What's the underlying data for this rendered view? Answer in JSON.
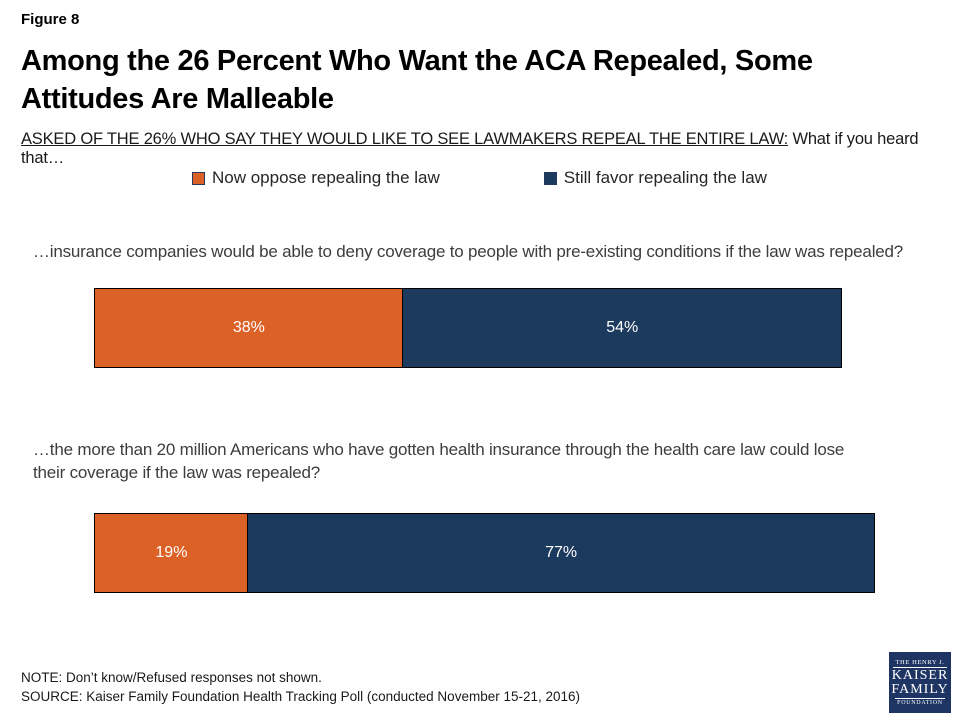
{
  "figure_label": "Figure 8",
  "title": "Among the 26 Percent Who Want the ACA Repealed, Some Attitudes Are Malleable",
  "subtitle": {
    "underlined": "ASKED OF THE 26% WHO SAY THEY WOULD LIKE TO SEE LAWMAKERS REPEAL THE ENTIRE LAW:",
    "rest": " What if you heard that…"
  },
  "legend": [
    {
      "label": "Now oppose repealing the law",
      "color": "#dc6127"
    },
    {
      "label": "Still favor repealing the law",
      "color": "#1c3a5e"
    }
  ],
  "chart_data": {
    "type": "bar",
    "orientation": "horizontal-stacked",
    "unit": "percent",
    "xlim": [
      0,
      100
    ],
    "grid": false,
    "legend_position": "top",
    "categories": [
      "…insurance companies would be able to deny coverage to people with pre-existing conditions if the law was repealed?",
      "…the more than 20 million Americans who have gotten health insurance through the health care law could lose their coverage if the law was repealed?"
    ],
    "series": [
      {
        "name": "Now oppose repealing the law",
        "color": "#dc6127",
        "values": [
          38,
          19
        ]
      },
      {
        "name": "Still favor repealing the law",
        "color": "#1c3a5e",
        "values": [
          54,
          77
        ]
      }
    ],
    "value_labels": [
      [
        "38%",
        "54%"
      ],
      [
        "19%",
        "77%"
      ]
    ]
  },
  "footer": {
    "note": "NOTE: Don’t know/Refused responses not shown.",
    "source": "SOURCE: Kaiser Family Foundation Health Tracking Poll (conducted November 15-21, 2016)"
  },
  "logo": {
    "line1": "THE HENRY J.",
    "line2": "KAISER",
    "line3": "FAMILY",
    "line4": "FOUNDATION",
    "color": "#1e3563"
  }
}
